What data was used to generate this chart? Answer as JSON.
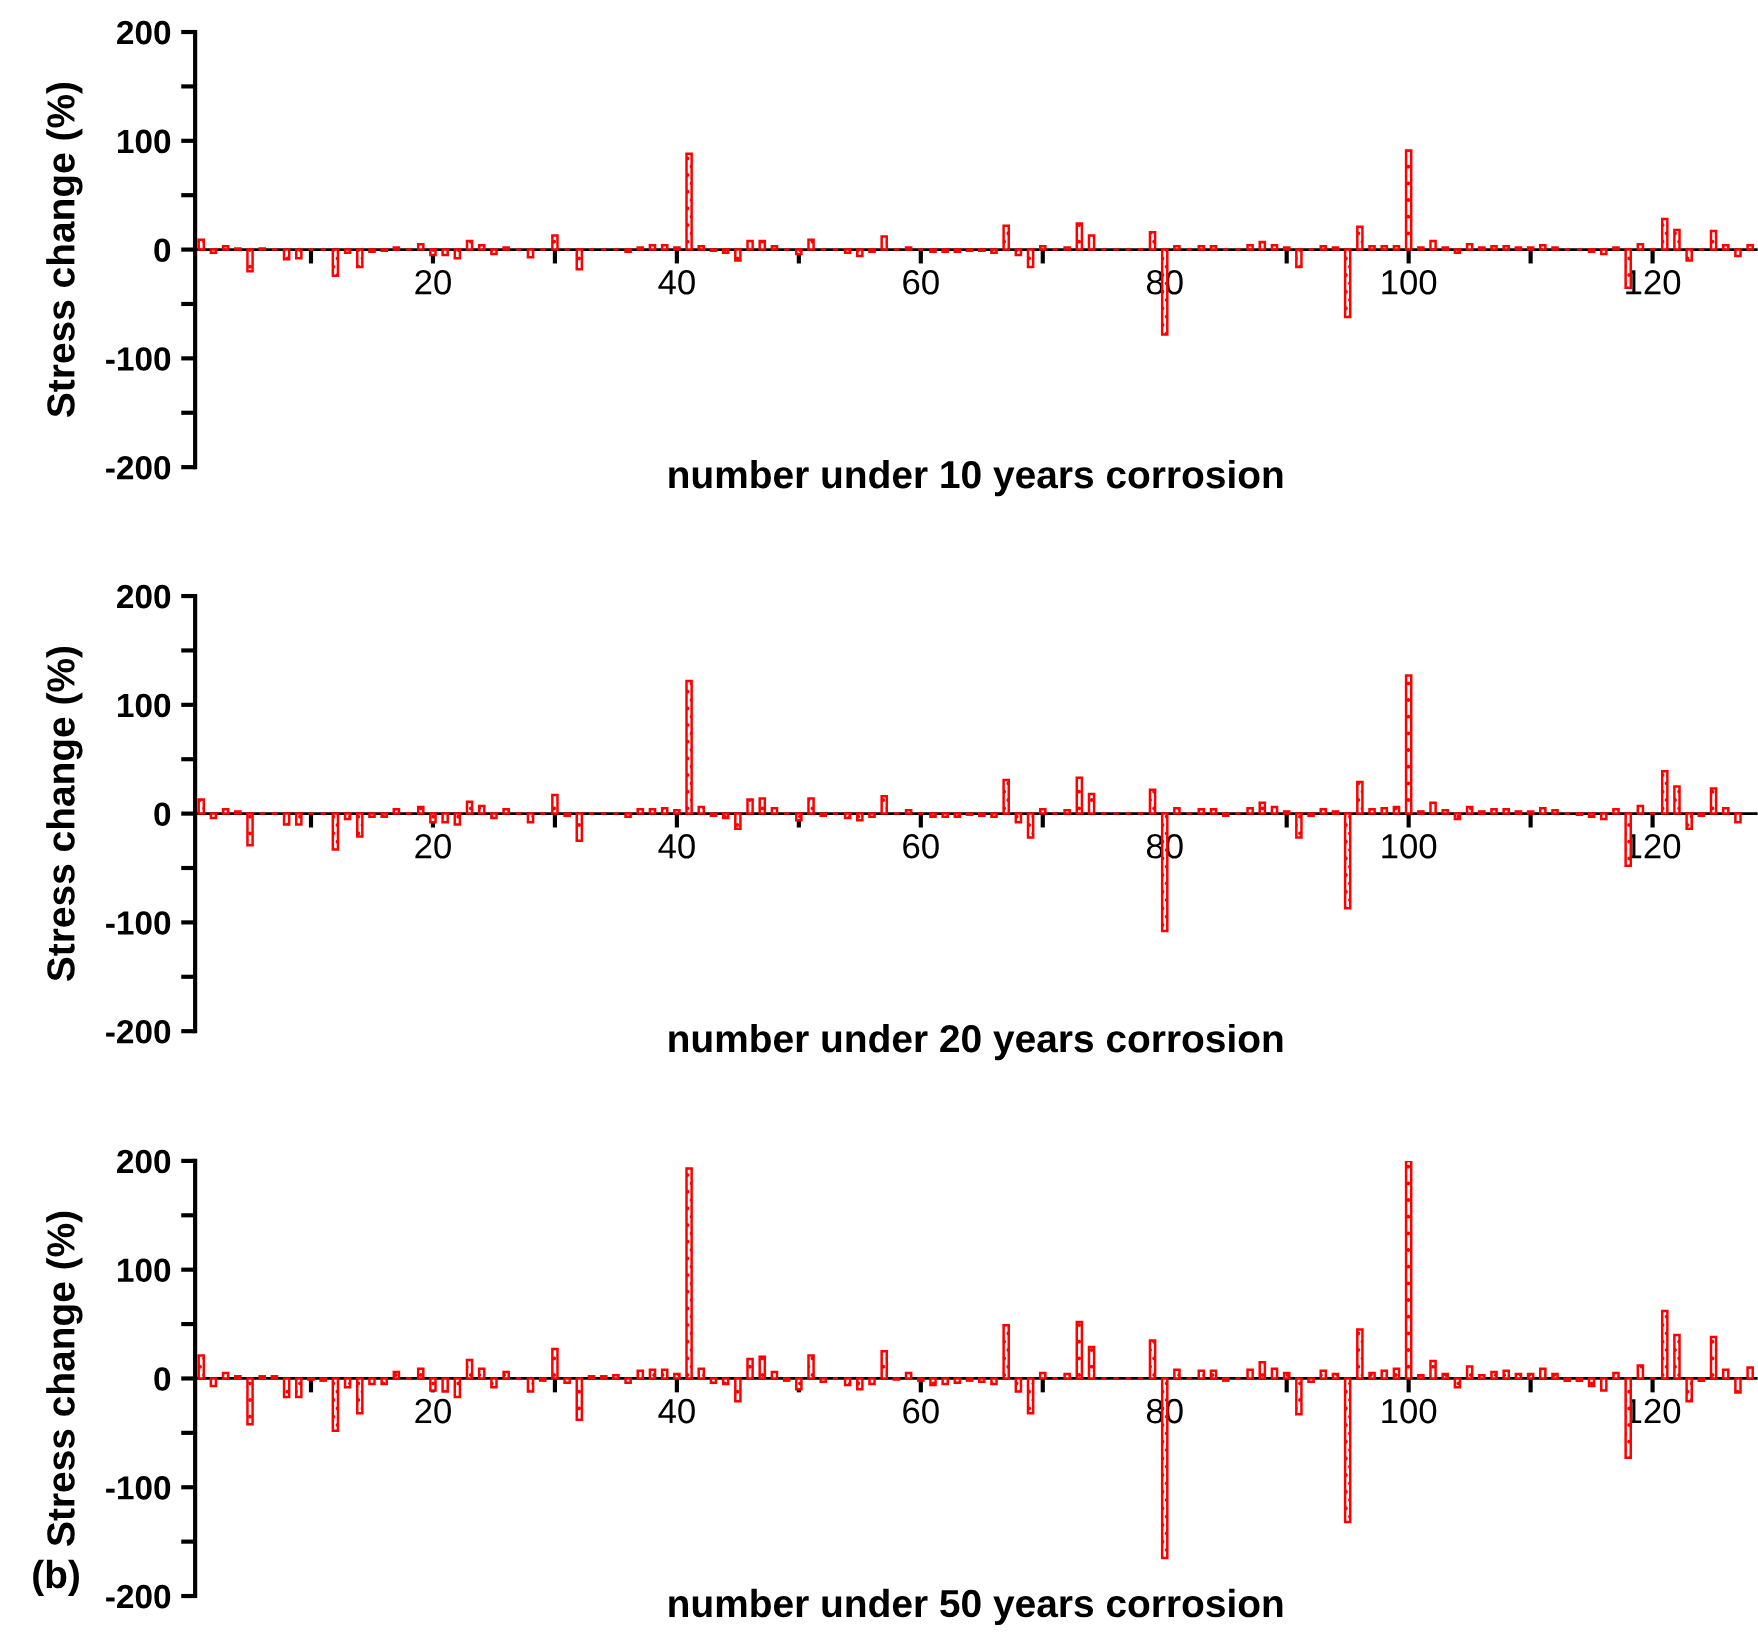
{
  "chart_data": [
    {
      "type": "bar",
      "xlabel": "number under 10 years corrosion",
      "ylabel": "Stress change (%)",
      "color": "#ff0000",
      "x": [
        1,
        2,
        3,
        4,
        5,
        6,
        7,
        8,
        9,
        10,
        11,
        12,
        13,
        14,
        15,
        16,
        17,
        18,
        19,
        20,
        21,
        22,
        23,
        24,
        25,
        26,
        27,
        28,
        29,
        30,
        31,
        32,
        33,
        34,
        35,
        36,
        37,
        38,
        39,
        40,
        41,
        42,
        43,
        44,
        45,
        46,
        47,
        48,
        49,
        50,
        51,
        52,
        53,
        54,
        55,
        56,
        57,
        58,
        59,
        60,
        61,
        62,
        63,
        64,
        65,
        66,
        67,
        68,
        69,
        70,
        71,
        72,
        73,
        74,
        75,
        76,
        77,
        78,
        79,
        80,
        81,
        82,
        83,
        84,
        85,
        86,
        87,
        88,
        89,
        90,
        91,
        92,
        93,
        94,
        95,
        96,
        97,
        98,
        99,
        100,
        101,
        102,
        103,
        104,
        105,
        106,
        107,
        108,
        109,
        110,
        111,
        112,
        113,
        114,
        115,
        116,
        117,
        118,
        119,
        120,
        121,
        122,
        123,
        124,
        125,
        126,
        127,
        128
      ],
      "values": [
        9,
        -3,
        3,
        1,
        -20,
        1,
        0,
        -9,
        -8,
        0,
        0,
        -24,
        -3,
        -16,
        -2,
        -1,
        2,
        0,
        5,
        -5,
        -5,
        -8,
        8,
        4,
        -4,
        2,
        0,
        -7,
        0,
        13,
        0,
        -18,
        0,
        0,
        0,
        -2,
        2,
        4,
        4,
        2,
        88,
        3,
        -1,
        -3,
        -10,
        8,
        8,
        3,
        0,
        -4,
        9,
        0,
        0,
        -3,
        -6,
        -2,
        12,
        0,
        2,
        0,
        -2,
        -2,
        -2,
        -1,
        -1,
        -3,
        22,
        -5,
        -16,
        3,
        0,
        2,
        24,
        13,
        0,
        0,
        0,
        0,
        16,
        -78,
        3,
        0,
        3,
        3,
        0,
        0,
        4,
        7,
        4,
        2,
        -16,
        0,
        3,
        2,
        -62,
        21,
        3,
        3,
        3,
        91,
        2,
        8,
        2,
        -3,
        5,
        2,
        3,
        3,
        2,
        2,
        4,
        2,
        0,
        0,
        -2,
        -4,
        2,
        -35,
        5,
        0,
        28,
        18,
        -10,
        0,
        17,
        4,
        -6,
        4
      ],
      "xlim": [
        0.5,
        128.5
      ],
      "xticks": [
        {
          "value": 10,
          "label": null
        },
        20,
        {
          "value": 30,
          "label": null
        },
        40,
        {
          "value": 50,
          "label": null
        },
        60,
        {
          "value": 70,
          "label": null
        },
        80,
        {
          "value": 90,
          "label": null
        },
        100,
        {
          "value": 110,
          "label": null
        },
        120
      ],
      "ylim": [
        -200,
        200
      ],
      "yticks": [
        -200,
        {
          "value": -150,
          "label": null
        },
        -100,
        {
          "value": -50,
          "label": null
        },
        0,
        {
          "value": 50,
          "label": null
        },
        100,
        {
          "value": 150,
          "label": null
        },
        200
      ]
    },
    {
      "type": "bar",
      "xlabel": "number under 20 years corrosion",
      "ylabel": "Stress change (%)",
      "color": "#ff0000",
      "x": [
        1,
        2,
        3,
        4,
        5,
        6,
        7,
        8,
        9,
        10,
        11,
        12,
        13,
        14,
        15,
        16,
        17,
        18,
        19,
        20,
        21,
        22,
        23,
        24,
        25,
        26,
        27,
        28,
        29,
        30,
        31,
        32,
        33,
        34,
        35,
        36,
        37,
        38,
        39,
        40,
        41,
        42,
        43,
        44,
        45,
        46,
        47,
        48,
        49,
        50,
        51,
        52,
        53,
        54,
        55,
        56,
        57,
        58,
        59,
        60,
        61,
        62,
        63,
        64,
        65,
        66,
        67,
        68,
        69,
        70,
        71,
        72,
        73,
        74,
        75,
        76,
        77,
        78,
        79,
        80,
        81,
        82,
        83,
        84,
        85,
        86,
        87,
        88,
        89,
        90,
        91,
        92,
        93,
        94,
        95,
        96,
        97,
        98,
        99,
        100,
        101,
        102,
        103,
        104,
        105,
        106,
        107,
        108,
        109,
        110,
        111,
        112,
        113,
        114,
        115,
        116,
        117,
        118,
        119,
        120,
        121,
        122,
        123,
        124,
        125,
        126,
        127
      ],
      "values": [
        13,
        -4,
        4,
        2,
        -29,
        0,
        0,
        -10,
        -10,
        0,
        0,
        -33,
        -5,
        -21,
        -3,
        -3,
        4,
        0,
        6,
        -8,
        -8,
        -10,
        11,
        7,
        -4,
        4,
        0,
        -8,
        0,
        17,
        -2,
        -25,
        0,
        0,
        0,
        -3,
        4,
        4,
        5,
        3,
        122,
        6,
        -2,
        -4,
        -14,
        13,
        14,
        5,
        0,
        -6,
        14,
        -2,
        0,
        -4,
        -6,
        -3,
        16,
        0,
        3,
        0,
        -3,
        -3,
        -3,
        -1,
        -2,
        -3,
        31,
        -8,
        -22,
        4,
        0,
        3,
        33,
        18,
        0,
        0,
        0,
        0,
        22,
        -108,
        5,
        0,
        4,
        4,
        -2,
        0,
        5,
        10,
        6,
        2,
        -22,
        -2,
        4,
        2,
        -87,
        29,
        4,
        5,
        6,
        127,
        2,
        10,
        3,
        -5,
        6,
        2,
        4,
        4,
        2,
        2,
        5,
        3,
        0,
        -1,
        -3,
        -5,
        4,
        -48,
        7,
        0,
        39,
        25,
        -14,
        -2,
        23,
        5,
        -8
      ],
      "xlim": [
        0.5,
        128.5
      ],
      "xticks": [
        {
          "value": 10,
          "label": null
        },
        20,
        {
          "value": 30,
          "label": null
        },
        40,
        {
          "value": 50,
          "label": null
        },
        60,
        {
          "value": 70,
          "label": null
        },
        80,
        {
          "value": 90,
          "label": null
        },
        100,
        {
          "value": 110,
          "label": null
        },
        120
      ],
      "ylim": [
        -200,
        200
      ],
      "yticks": [
        -200,
        {
          "value": -150,
          "label": null
        },
        -100,
        {
          "value": -50,
          "label": null
        },
        0,
        {
          "value": 50,
          "label": null
        },
        100,
        {
          "value": 150,
          "label": null
        },
        200
      ]
    },
    {
      "type": "bar",
      "xlabel": "number under 50 years corrosion",
      "ylabel": "Stress change (%)",
      "color": "#ff0000",
      "annotations": [
        "(b)"
      ],
      "x": [
        1,
        2,
        3,
        4,
        5,
        6,
        7,
        8,
        9,
        10,
        11,
        12,
        13,
        14,
        15,
        16,
        17,
        18,
        19,
        20,
        21,
        22,
        23,
        24,
        25,
        26,
        27,
        28,
        29,
        30,
        31,
        32,
        33,
        34,
        35,
        36,
        37,
        38,
        39,
        40,
        41,
        42,
        43,
        44,
        45,
        46,
        47,
        48,
        49,
        50,
        51,
        52,
        53,
        54,
        55,
        56,
        57,
        58,
        59,
        60,
        61,
        62,
        63,
        64,
        65,
        66,
        67,
        68,
        69,
        70,
        71,
        72,
        73,
        74,
        75,
        76,
        77,
        78,
        79,
        80,
        81,
        82,
        83,
        84,
        85,
        86,
        87,
        88,
        89,
        90,
        91,
        92,
        93,
        94,
        95,
        96,
        97,
        98,
        99,
        100,
        101,
        102,
        103,
        104,
        105,
        106,
        107,
        108,
        109,
        110,
        111,
        112,
        113,
        114,
        115,
        116,
        117,
        118,
        119,
        120,
        121,
        122,
        123,
        124,
        125,
        126,
        127,
        128
      ],
      "values": [
        21,
        -7,
        5,
        2,
        -42,
        2,
        2,
        -17,
        -17,
        -1,
        -2,
        -48,
        -8,
        -32,
        -5,
        -5,
        6,
        0,
        9,
        -11,
        -12,
        -17,
        17,
        9,
        -8,
        6,
        0,
        -12,
        -2,
        27,
        -4,
        -38,
        2,
        2,
        3,
        -4,
        7,
        8,
        8,
        4,
        193,
        9,
        -4,
        -5,
        -21,
        18,
        20,
        6,
        -2,
        -10,
        21,
        -3,
        0,
        -6,
        -10,
        -5,
        25,
        -1,
        5,
        -2,
        -6,
        -5,
        -4,
        -2,
        -3,
        -5,
        49,
        -12,
        -32,
        5,
        0,
        4,
        52,
        29,
        0,
        0,
        0,
        0,
        35,
        -165,
        8,
        0,
        7,
        7,
        -2,
        0,
        8,
        15,
        9,
        5,
        -33,
        -3,
        7,
        4,
        -132,
        45,
        5,
        7,
        9,
        200,
        3,
        16,
        4,
        -8,
        11,
        3,
        6,
        7,
        4,
        4,
        9,
        4,
        -2,
        -2,
        -7,
        -11,
        5,
        -73,
        12,
        0,
        62,
        40,
        -21,
        -2,
        38,
        8,
        -13,
        10
      ],
      "xlim": [
        0.5,
        128.5
      ],
      "xticks": [
        {
          "value": 10,
          "label": null
        },
        20,
        {
          "value": 30,
          "label": null
        },
        40,
        {
          "value": 50,
          "label": null
        },
        60,
        {
          "value": 70,
          "label": null
        },
        80,
        {
          "value": 90,
          "label": null
        },
        100,
        {
          "value": 110,
          "label": null
        },
        120
      ],
      "ylim": [
        -200,
        200
      ],
      "yticks": [
        -200,
        {
          "value": -150,
          "label": null
        },
        -100,
        {
          "value": -50,
          "label": null
        },
        0,
        {
          "value": 50,
          "label": null
        },
        100,
        {
          "value": 150,
          "label": null
        },
        200
      ]
    }
  ]
}
